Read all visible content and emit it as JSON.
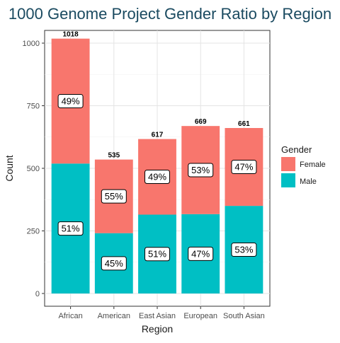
{
  "chart_data": {
    "type": "bar",
    "stacked": true,
    "title": "1000 Genome Project Gender Ratio by Region",
    "xlabel": "Region",
    "ylabel": "Count",
    "ylim": [
      0,
      1090
    ],
    "yticks": [
      0,
      250,
      500,
      750,
      1000
    ],
    "grid": true,
    "categories": [
      "African",
      "American",
      "East Asian",
      "European",
      "South Asian"
    ],
    "totals": [
      1018,
      535,
      617,
      669,
      661
    ],
    "series": [
      {
        "name": "Male",
        "values": [
          519,
          241,
          315,
          317,
          350
        ],
        "labels": [
          "51%",
          "45%",
          "51%",
          "47%",
          "53%"
        ],
        "color": "#00BFC4"
      },
      {
        "name": "Female",
        "values": [
          499,
          294,
          302,
          352,
          311
        ],
        "labels": [
          "49%",
          "55%",
          "49%",
          "53%",
          "47%"
        ],
        "color": "#F8766D"
      }
    ],
    "legend": {
      "title": "Gender",
      "position": "right",
      "entries": [
        {
          "label": "Female",
          "color": "#F8766D"
        },
        {
          "label": "Male",
          "color": "#00BFC4"
        }
      ]
    }
  }
}
